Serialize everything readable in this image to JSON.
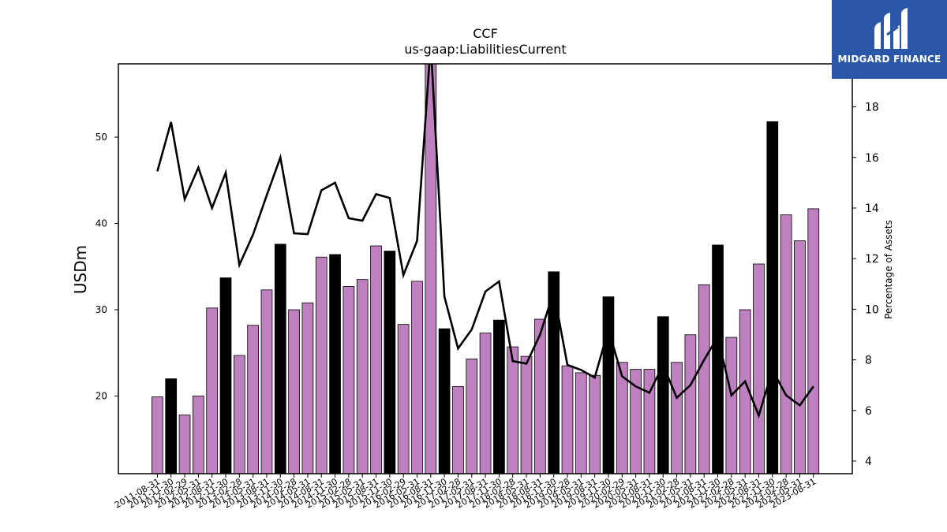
{
  "brand": {
    "name": "MIDGARD FINANCE",
    "bg_color": "#2a57a8"
  },
  "chart_data": {
    "type": "bar",
    "title": "CCF",
    "subtitle": "us-gaap:LiabilitiesCurrent",
    "ylabel": "USDm",
    "y2label": "Percentage of Assets",
    "ylim": [
      11.0,
      58.5
    ],
    "y2lim": [
      3.5,
      19.7
    ],
    "yticks": [
      20,
      30,
      40,
      50
    ],
    "y2ticks": [
      4,
      6,
      8,
      10,
      12,
      14,
      16,
      18
    ],
    "bar_color": "#bf80bf",
    "highlight_color": "#000000",
    "line_color": "#000000",
    "categories": [
      "2011-08-31",
      "2011-11-30",
      "2012-02-29",
      "2012-05-31",
      "2012-08-31",
      "2012-11-30",
      "2013-02-28",
      "2013-05-31",
      "2013-08-31",
      "2013-11-30",
      "2014-02-28",
      "2014-05-31",
      "2014-08-31",
      "2014-11-30",
      "2015-02-28",
      "2015-05-31",
      "2015-08-31",
      "2015-11-30",
      "2016-02-29",
      "2016-05-31",
      "2016-08-31",
      "2016-11-30",
      "2017-02-28",
      "2017-05-31",
      "2017-08-31",
      "2017-11-30",
      "2018-02-28",
      "2018-05-31",
      "2018-08-31",
      "2018-11-30",
      "2019-02-28",
      "2019-05-31",
      "2019-08-31",
      "2019-11-30",
      "2020-02-29",
      "2020-05-31",
      "2020-08-31",
      "2020-11-30",
      "2021-02-28",
      "2021-05-31",
      "2021-08-31",
      "2021-11-30",
      "2022-02-28",
      "2022-05-31",
      "2022-08-31",
      "2022-11-30",
      "2023-02-28",
      "2023-05-31",
      "2023-08-31"
    ],
    "series": [
      {
        "type": "bar",
        "values": [
          19.9,
          22.0,
          17.8,
          20.0,
          30.2,
          33.7,
          24.7,
          28.2,
          32.3,
          37.6,
          30.0,
          30.8,
          36.1,
          36.4,
          32.7,
          33.5,
          37.4,
          36.8,
          28.3,
          33.3,
          60.0,
          27.8,
          21.1,
          24.3,
          27.3,
          28.8,
          25.7,
          24.6,
          28.9,
          34.4,
          23.5,
          22.7,
          22.4,
          31.5,
          23.9,
          23.1,
          23.1,
          29.2,
          23.9,
          27.1,
          32.9,
          37.5,
          26.8,
          30.0,
          35.3,
          51.8,
          41.0,
          38.0,
          41.7
        ],
        "highlight_every": 4,
        "highlight_offset": 1
      },
      {
        "type": "line",
        "values": [
          15.45,
          17.4,
          14.35,
          15.6,
          14.0,
          15.4,
          11.75,
          12.95,
          14.5,
          16.0,
          13.0,
          12.97,
          14.7,
          15.0,
          13.6,
          13.5,
          14.55,
          14.4,
          11.35,
          12.7,
          20.5,
          10.5,
          8.45,
          9.2,
          10.7,
          11.1,
          7.95,
          7.85,
          9.0,
          10.7,
          7.8,
          7.6,
          7.3,
          9.2,
          7.35,
          6.95,
          6.7,
          7.8,
          6.5,
          7.0,
          8.0,
          8.9,
          6.6,
          7.15,
          5.8,
          7.6,
          6.6,
          6.2,
          6.95
        ]
      }
    ],
    "grid": false,
    "legend": "none"
  }
}
